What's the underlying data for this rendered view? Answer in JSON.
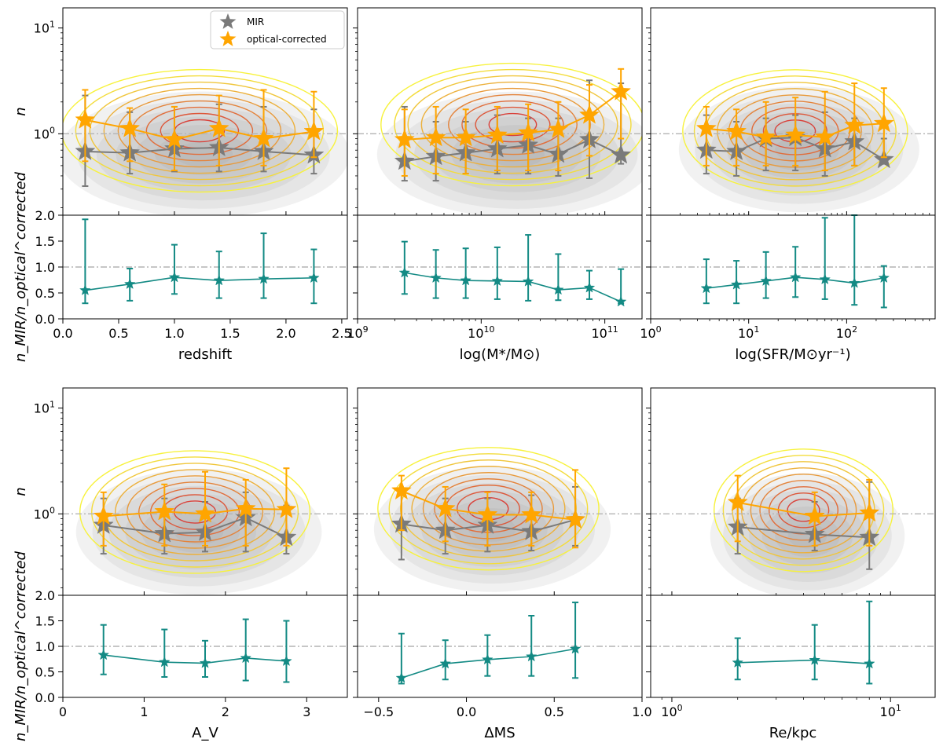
{
  "chart_data": [
    {
      "type": "scatter",
      "xscale": "linear",
      "xlim": [
        0,
        2.55
      ],
      "xticks": [
        "0.0",
        "0.5",
        "1.0",
        "1.5",
        "2.0",
        "2.5"
      ],
      "xtick_values": [
        0,
        0.5,
        1.0,
        1.5,
        2.0,
        2.5
      ],
      "xlabel": "redshift",
      "x": [
        0.2,
        0.6,
        1.0,
        1.4,
        1.8,
        2.25
      ],
      "mir": {
        "name": "MIR",
        "values": [
          0.68,
          0.66,
          0.72,
          0.74,
          0.68,
          0.63
        ],
        "err_low": [
          0.32,
          0.42,
          0.44,
          0.44,
          0.44,
          0.42
        ],
        "err_high": [
          2.3,
          1.6,
          1.8,
          1.9,
          1.8,
          1.7
        ]
      },
      "optical": {
        "name": "optical-corrected",
        "values": [
          1.35,
          1.12,
          0.88,
          1.12,
          0.9,
          1.05
        ],
        "err_low": [
          0.55,
          0.55,
          0.45,
          0.5,
          0.5,
          0.6
        ],
        "err_high": [
          2.6,
          1.75,
          1.8,
          2.3,
          2.6,
          2.5
        ]
      },
      "ratio": {
        "values": [
          0.55,
          0.67,
          0.8,
          0.74,
          0.77,
          0.79
        ],
        "err_low": [
          0.3,
          0.35,
          0.48,
          0.4,
          0.4,
          0.3
        ],
        "err_high": [
          1.92,
          0.97,
          1.43,
          1.3,
          1.65,
          1.34
        ]
      }
    },
    {
      "type": "scatter",
      "xscale": "log",
      "xlim": [
        1000000000,
        200000000000
      ],
      "xticks": [
        "10^9",
        "10^10",
        "10^11"
      ],
      "xtick_values": [
        1000000000,
        10000000000,
        100000000000
      ],
      "xlabel": "log(M*/M⊙)",
      "x": [
        2400000000,
        4300000000,
        7500000000,
        13500000000,
        24000000000,
        42000000000,
        75000000000,
        135000000000
      ],
      "mir": {
        "name": "MIR",
        "values": [
          0.55,
          0.61,
          0.66,
          0.72,
          0.78,
          0.64,
          0.88,
          0.63
        ],
        "err_low": [
          0.36,
          0.36,
          0.42,
          0.42,
          0.42,
          0.4,
          0.38,
          0.52
        ],
        "err_high": [
          1.8,
          1.3,
          1.3,
          1.5,
          1.4,
          1.4,
          3.2,
          3.0
        ]
      },
      "optical": {
        "name": "optical-corrected",
        "values": [
          0.88,
          0.92,
          0.92,
          0.97,
          1.02,
          1.1,
          1.5,
          2.5
        ],
        "err_low": [
          0.4,
          0.42,
          0.42,
          0.45,
          0.45,
          0.45,
          0.62,
          0.9
        ],
        "err_high": [
          1.7,
          1.8,
          1.7,
          1.8,
          1.9,
          2.0,
          2.9,
          4.1
        ]
      },
      "ratio": {
        "values": [
          0.89,
          0.79,
          0.74,
          0.73,
          0.72,
          0.56,
          0.6,
          0.33
        ],
        "err_low": [
          0.48,
          0.4,
          0.4,
          0.38,
          0.35,
          0.36,
          0.38,
          0.3
        ],
        "err_high": [
          1.49,
          1.33,
          1.36,
          1.38,
          1.62,
          1.25,
          0.93,
          0.96
        ]
      }
    },
    {
      "type": "scatter",
      "xscale": "log",
      "xlim": [
        1,
        800
      ],
      "xticks": [
        "10^0",
        "10^1",
        "10^2"
      ],
      "xtick_values": [
        1,
        10,
        100
      ],
      "xlabel": "log(SFR/M⊙yr⁻¹)",
      "x": [
        3.7,
        7.5,
        15,
        30,
        60,
        120,
        240
      ],
      "mir": {
        "name": "MIR",
        "values": [
          0.7,
          0.68,
          0.9,
          0.92,
          0.72,
          0.84,
          0.57
        ],
        "err_low": [
          0.42,
          0.4,
          0.45,
          0.45,
          0.4,
          0.5,
          0.52
        ],
        "err_high": [
          1.5,
          1.3,
          1.4,
          1.5,
          1.6,
          1.4,
          0.9
        ]
      },
      "optical": {
        "name": "optical-corrected",
        "values": [
          1.12,
          1.05,
          0.93,
          0.97,
          0.93,
          1.2,
          1.25
        ],
        "err_low": [
          0.5,
          0.5,
          0.5,
          0.5,
          0.45,
          0.5,
          0.6
        ],
        "err_high": [
          1.8,
          1.7,
          2.0,
          2.2,
          2.5,
          3.0,
          2.7
        ]
      },
      "ratio": {
        "values": [
          0.59,
          0.66,
          0.73,
          0.8,
          0.76,
          0.69,
          0.79
        ],
        "err_low": [
          0.3,
          0.3,
          0.4,
          0.42,
          0.38,
          0.27,
          0.22
        ],
        "err_high": [
          1.15,
          1.12,
          1.29,
          1.39,
          1.95,
          2.0,
          1.02
        ]
      }
    },
    {
      "type": "scatter",
      "xscale": "linear",
      "xlim": [
        0,
        3.5
      ],
      "xticks": [
        "0",
        "1",
        "2",
        "3"
      ],
      "xtick_values": [
        0,
        1,
        2,
        3
      ],
      "xlabel": "A_V",
      "x": [
        0.5,
        1.25,
        1.75,
        2.25,
        2.75
      ],
      "mir": {
        "name": "MIR",
        "values": [
          0.78,
          0.65,
          0.67,
          0.92,
          0.6
        ],
        "err_low": [
          0.42,
          0.42,
          0.44,
          0.44,
          0.42
        ],
        "err_high": [
          1.4,
          1.4,
          1.3,
          1.6,
          1.2
        ]
      },
      "optical": {
        "name": "optical-corrected",
        "values": [
          0.95,
          1.05,
          1.0,
          1.12,
          1.1
        ],
        "err_low": [
          0.5,
          0.5,
          0.5,
          0.5,
          0.5
        ],
        "err_high": [
          1.6,
          1.9,
          2.5,
          2.1,
          2.7
        ]
      },
      "ratio": {
        "values": [
          0.83,
          0.69,
          0.67,
          0.77,
          0.71
        ],
        "err_low": [
          0.45,
          0.4,
          0.4,
          0.33,
          0.3
        ],
        "err_high": [
          1.42,
          1.33,
          1.11,
          1.53,
          1.5
        ]
      }
    },
    {
      "type": "scatter",
      "xscale": "linear",
      "xlim": [
        -0.62,
        1.0
      ],
      "xticks": [
        "−0.5",
        "0.0",
        "0.5",
        "1.0"
      ],
      "xtick_values": [
        -0.5,
        0.0,
        0.5,
        1.0
      ],
      "xlabel": "ΔMS",
      "x": [
        -0.37,
        -0.12,
        0.12,
        0.37,
        0.62
      ],
      "mir": {
        "name": "MIR",
        "values": [
          0.8,
          0.7,
          0.78,
          0.68,
          0.88
        ],
        "err_low": [
          0.37,
          0.42,
          0.44,
          0.45,
          0.5
        ],
        "err_high": [
          1.6,
          1.4,
          1.4,
          1.5,
          1.8
        ]
      },
      "optical": {
        "name": "optical-corrected",
        "values": [
          1.65,
          1.12,
          0.98,
          0.98,
          0.88
        ],
        "err_low": [
          0.7,
          0.55,
          0.5,
          0.5,
          0.48
        ],
        "err_high": [
          2.3,
          1.8,
          1.6,
          1.6,
          2.6
        ]
      },
      "ratio": {
        "values": [
          0.38,
          0.66,
          0.74,
          0.8,
          0.95
        ],
        "err_low": [
          0.27,
          0.35,
          0.42,
          0.42,
          0.38
        ],
        "err_high": [
          1.25,
          1.12,
          1.22,
          1.6,
          1.86
        ]
      }
    },
    {
      "type": "scatter",
      "xscale": "log",
      "xlim": [
        0.8,
        16
      ],
      "xticks": [
        "10^0",
        "10^1"
      ],
      "xtick_values": [
        1,
        10
      ],
      "xlabel": "Re/kpc",
      "x": [
        2.0,
        4.5,
        8.0
      ],
      "mir": {
        "name": "MIR",
        "values": [
          0.75,
          0.64,
          0.6
        ],
        "err_low": [
          0.42,
          0.45,
          0.3
        ],
        "err_high": [
          1.4,
          1.3,
          2.0
        ]
      },
      "optical": {
        "name": "optical-corrected",
        "values": [
          1.28,
          0.95,
          1.02
        ],
        "err_low": [
          0.55,
          0.5,
          0.5
        ],
        "err_high": [
          2.3,
          1.6,
          2.1
        ]
      },
      "ratio": {
        "values": [
          0.68,
          0.73,
          0.66
        ],
        "err_low": [
          0.35,
          0.35,
          0.27
        ],
        "err_high": [
          1.16,
          1.42,
          1.88
        ]
      }
    }
  ],
  "shared": {
    "top_ylim": [
      0.17,
      15.5
    ],
    "top_ytick_labels": [
      "10^0",
      "10^1"
    ],
    "top_ylabel": "n",
    "ratio_ylim": [
      0,
      2.0
    ],
    "ratio_yticks": [
      "0.0",
      "0.5",
      "1.0",
      "1.5",
      "2.0"
    ],
    "ratio_ylabel": "n_MIR/n_optical^corrected",
    "ref_line_value": 1.0
  },
  "legend": {
    "mir_label": "MIR",
    "optical_label": "optical-corrected"
  },
  "colors": {
    "mir": "#7a7a7a",
    "optical": "#ffa500",
    "ratio": "#138a84",
    "contour_outer": "#f7f23c",
    "contour_inner": "#d9413a",
    "density": "#9a9a9a"
  }
}
